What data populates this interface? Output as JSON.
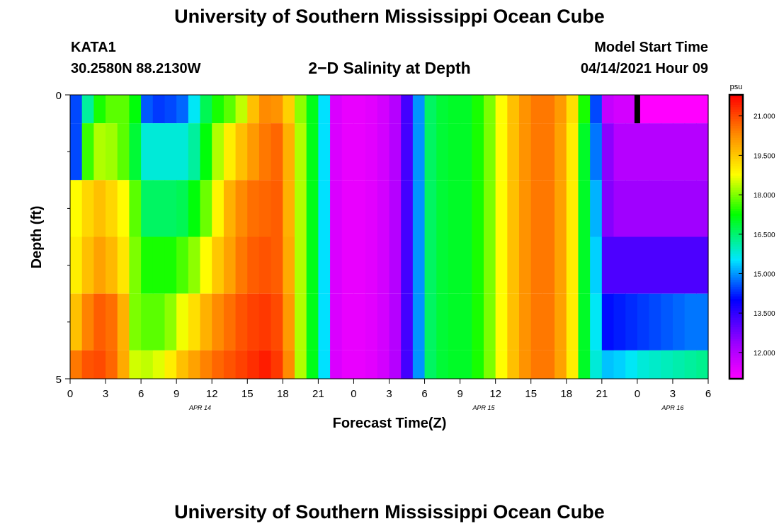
{
  "page": {
    "title_top": "University of Southern Mississippi Ocean Cube",
    "title_bottom": "University of Southern Mississippi Ocean Cube",
    "station_id": "KATA1",
    "location": "30.2580N  88.2130W",
    "subtitle": "2−D Salinity at Depth",
    "model_start_label": "Model Start Time",
    "model_start_value": "04/14/2021 Hour 09"
  },
  "chart_data": {
    "type": "heatmap",
    "title": "2-D Salinity at Depth",
    "xlabel": "Forecast Time(Z)",
    "ylabel": "Depth (ft)",
    "x_ticks": [
      "0",
      "3",
      "6",
      "9",
      "12",
      "15",
      "18",
      "21",
      "0",
      "3",
      "6",
      "9",
      "12",
      "15",
      "18",
      "21",
      "0",
      "3",
      "6"
    ],
    "x_hours_range": [
      0,
      54
    ],
    "date_labels": [
      {
        "text": "APR  14",
        "hour": 11
      },
      {
        "text": "APR  15",
        "hour": 35
      },
      {
        "text": "APR  16",
        "hour": 51
      }
    ],
    "y_range": [
      0,
      5
    ],
    "y_tick_labels": [
      "0",
      "5"
    ],
    "y_minor_ticks": [
      1,
      2,
      3,
      4
    ],
    "colorbar": {
      "unit": "psu",
      "min": 11.0,
      "max": 21.8,
      "ticks": [
        "12.000",
        "13.500",
        "15.000",
        "16.500",
        "18.000",
        "19.500",
        "21.000"
      ],
      "tick_values": [
        12.0,
        13.5,
        15.0,
        16.5,
        18.0,
        19.5,
        21.0
      ]
    },
    "model_start_marker_hour": 48,
    "layer_depth_ranges": [
      [
        0,
        0.5
      ],
      [
        0.5,
        1.5
      ],
      [
        1.5,
        2.5
      ],
      [
        2.5,
        3.5
      ],
      [
        3.5,
        4.5
      ],
      [
        4.5,
        5
      ]
    ],
    "time_hours": [
      0,
      1,
      2,
      3,
      4,
      5,
      6,
      7,
      8,
      9,
      10,
      11,
      12,
      13,
      14,
      15,
      16,
      17,
      18,
      19,
      20,
      21,
      22,
      23,
      24,
      25,
      26,
      27,
      28,
      29,
      30,
      31,
      32,
      33,
      34,
      35,
      36,
      37,
      38,
      39,
      40,
      41,
      42,
      43,
      44,
      45,
      46,
      47,
      48,
      49,
      50,
      51,
      52,
      53
    ],
    "values": [
      [
        14.5,
        16.2,
        17.4,
        17.8,
        17.8,
        17.2,
        14.6,
        14.4,
        14.5,
        14.7,
        15.6,
        16.7,
        17.4,
        17.8,
        18.4,
        19.6,
        20.3,
        20.2,
        19.4,
        18.1,
        17.1,
        15.5,
        11.5,
        11.3,
        11.3,
        11.4,
        11.6,
        12.0,
        13.3,
        15.0,
        16.6,
        16.9,
        17.0,
        17.0,
        17.4,
        18.0,
        18.8,
        19.6,
        20.2,
        20.5,
        20.5,
        20.1,
        19.2,
        17.4,
        14.5,
        11.8,
        11.6,
        11.6,
        11.0,
        11.0,
        11.0,
        11.0,
        11.0,
        11.0
      ],
      [
        14.5,
        17.6,
        18.3,
        18.2,
        17.8,
        16.9,
        15.8,
        15.8,
        15.8,
        15.8,
        16.2,
        17.2,
        18.3,
        19.0,
        19.6,
        20.1,
        20.5,
        20.7,
        19.8,
        18.3,
        17.1,
        15.5,
        11.5,
        11.3,
        11.3,
        11.4,
        11.6,
        12.0,
        13.3,
        15.0,
        16.6,
        16.9,
        17.0,
        17.0,
        17.4,
        18.0,
        18.8,
        19.6,
        20.2,
        20.5,
        20.5,
        20.0,
        19.0,
        17.0,
        14.8,
        12.5,
        12.0,
        12.0,
        12.0,
        12.0,
        12.0,
        12.0,
        12.0,
        12.0
      ],
      [
        18.8,
        19.3,
        19.6,
        19.3,
        18.8,
        17.8,
        16.6,
        16.6,
        16.6,
        16.7,
        17.2,
        17.9,
        18.9,
        19.8,
        20.3,
        20.6,
        20.7,
        20.8,
        19.8,
        18.3,
        17.1,
        15.5,
        11.5,
        11.3,
        11.3,
        11.4,
        11.6,
        12.0,
        13.3,
        15.0,
        16.6,
        16.9,
        17.0,
        17.0,
        17.4,
        18.0,
        18.8,
        19.6,
        20.2,
        20.5,
        20.5,
        20.0,
        19.0,
        17.0,
        15.2,
        12.6,
        12.3,
        12.3,
        12.3,
        12.3,
        12.3,
        12.3,
        12.3,
        12.3
      ],
      [
        19.0,
        19.6,
        20.0,
        19.7,
        19.1,
        18.0,
        17.4,
        17.4,
        17.4,
        17.7,
        18.1,
        18.8,
        19.5,
        20.0,
        20.5,
        20.8,
        20.9,
        20.8,
        19.9,
        18.3,
        17.1,
        15.5,
        11.5,
        11.3,
        11.3,
        11.4,
        11.6,
        12.0,
        13.3,
        15.0,
        16.6,
        16.9,
        17.0,
        17.0,
        17.4,
        18.0,
        18.8,
        19.6,
        20.2,
        20.5,
        20.5,
        20.0,
        19.0,
        17.0,
        15.4,
        13.2,
        13.2,
        13.2,
        13.2,
        13.2,
        13.2,
        13.2,
        13.2,
        13.2
      ],
      [
        19.6,
        20.4,
        20.8,
        20.6,
        19.8,
        18.0,
        17.8,
        17.8,
        18.1,
        18.7,
        19.2,
        19.8,
        20.3,
        20.6,
        20.9,
        21.1,
        21.2,
        21.0,
        20.1,
        18.3,
        17.1,
        15.5,
        11.5,
        11.3,
        11.3,
        11.4,
        11.6,
        12.0,
        13.3,
        15.0,
        16.6,
        16.9,
        17.0,
        17.0,
        17.4,
        18.0,
        18.8,
        19.6,
        20.2,
        20.5,
        20.5,
        20.0,
        19.0,
        17.0,
        15.6,
        14.1,
        14.2,
        14.3,
        14.4,
        14.5,
        14.6,
        14.7,
        14.8,
        14.8
      ],
      [
        20.5,
        20.9,
        21.0,
        20.7,
        19.9,
        18.5,
        18.4,
        18.6,
        19.0,
        19.6,
        20.0,
        20.4,
        20.7,
        20.9,
        21.1,
        21.3,
        21.5,
        21.2,
        20.3,
        18.3,
        17.1,
        15.5,
        11.5,
        11.3,
        11.3,
        11.4,
        11.6,
        12.0,
        13.3,
        15.0,
        16.6,
        16.9,
        17.0,
        17.0,
        17.4,
        18.0,
        18.8,
        19.6,
        20.2,
        20.5,
        20.5,
        20.0,
        19.0,
        17.0,
        15.8,
        15.3,
        15.4,
        15.6,
        15.8,
        15.9,
        16.0,
        16.1,
        16.2,
        16.3
      ]
    ]
  }
}
